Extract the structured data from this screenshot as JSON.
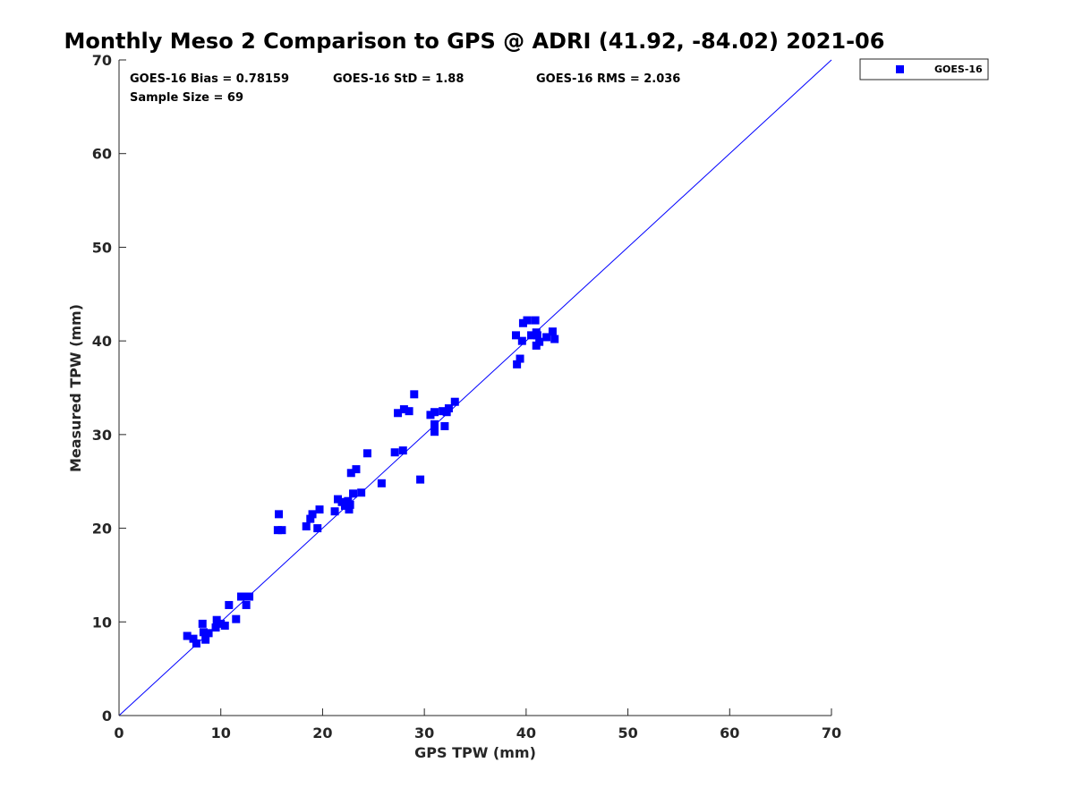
{
  "chart_data": {
    "type": "scatter",
    "title": "Monthly Meso 2 Comparison to GPS @ ADRI (41.92, -84.02) 2021-06",
    "xlabel": "GPS TPW (mm)",
    "ylabel": "Measured TPW (mm)",
    "xlim": [
      0,
      70
    ],
    "ylim": [
      0,
      70
    ],
    "xticks": [
      "0",
      "10",
      "20",
      "30",
      "40",
      "50",
      "60",
      "70"
    ],
    "yticks": [
      "0",
      "10",
      "20",
      "30",
      "40",
      "50",
      "60",
      "70"
    ],
    "grid": false,
    "legend_position": "outside-top-right",
    "reference_line": {
      "x": [
        0,
        70
      ],
      "y": [
        0,
        70
      ]
    },
    "stats": {
      "bias": "GOES-16 Bias = 0.78159",
      "std": "GOES-16 StD = 1.88",
      "rms": "GOES-16 RMS = 2.036",
      "sample_size": "Sample Size = 69"
    },
    "series": [
      {
        "name": "GOES-16",
        "color": "#0000ff",
        "marker": "square",
        "x": [
          6.7,
          7.3,
          7.6,
          8.2,
          8.3,
          8.5,
          8.8,
          9.6,
          9.5,
          10.0,
          10.4,
          10.8,
          11.5,
          12.0,
          12.3,
          12.5,
          12.8,
          15.6,
          15.7,
          16.0,
          18.4,
          18.8,
          19.0,
          19.5,
          19.7,
          21.2,
          21.5,
          21.9,
          22.2,
          22.5,
          22.6,
          22.7,
          22.8,
          23.0,
          23.3,
          23.8,
          24.4,
          25.8,
          27.1,
          27.4,
          27.9,
          28.0,
          28.5,
          29.0,
          29.6,
          30.6,
          31.0,
          31.0,
          31.0,
          31.8,
          32.0,
          32.2,
          32.4,
          33.0,
          39.0,
          39.1,
          39.4,
          39.7,
          40.1,
          40.5,
          40.9,
          41.0,
          41.0,
          41.1,
          41.3,
          42.0,
          42.6,
          42.8,
          39.6
        ],
        "y": [
          8.5,
          8.2,
          7.7,
          9.8,
          8.9,
          8.1,
          8.8,
          10.2,
          9.4,
          9.8,
          9.6,
          11.8,
          10.3,
          12.7,
          12.7,
          11.8,
          12.7,
          19.8,
          21.5,
          19.8,
          20.2,
          21.0,
          21.5,
          20.0,
          22.0,
          21.8,
          23.1,
          22.8,
          22.4,
          22.9,
          22.0,
          22.5,
          25.9,
          23.7,
          26.3,
          23.8,
          28.0,
          24.8,
          28.1,
          32.3,
          28.3,
          32.7,
          32.5,
          34.3,
          25.2,
          32.1,
          32.4,
          30.3,
          31.1,
          32.5,
          30.9,
          32.4,
          32.8,
          33.5,
          40.6,
          37.5,
          38.1,
          41.9,
          42.2,
          40.6,
          42.2,
          39.5,
          40.9,
          40.6,
          39.9,
          40.4,
          41.0,
          40.2,
          40.0
        ]
      }
    ]
  }
}
